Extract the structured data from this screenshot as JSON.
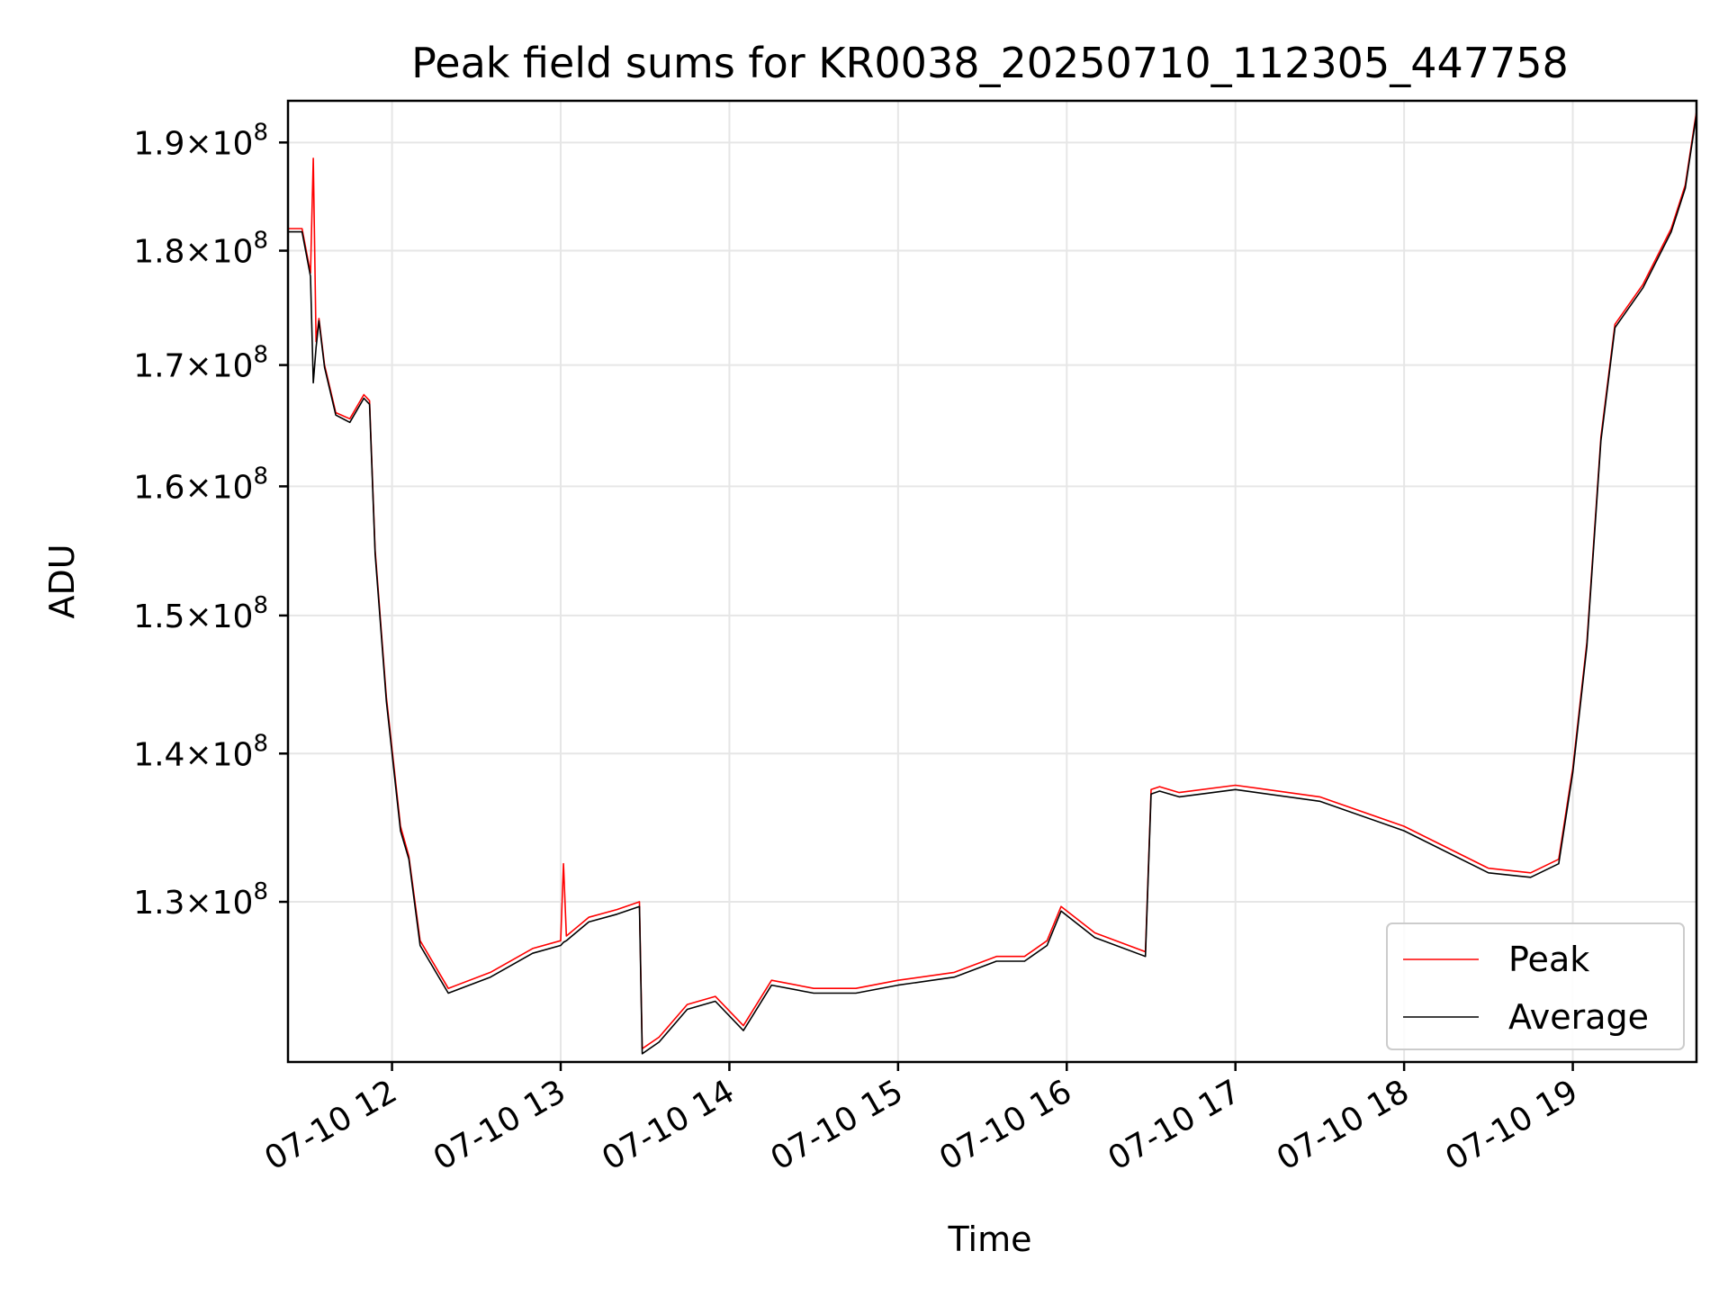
{
  "chart_data": {
    "type": "line",
    "title": "Peak field sums for KR0038_20250710_112305_447758",
    "xlabel": "Time",
    "ylabel": "ADU",
    "y_scale": "log",
    "xlim": [
      "2025-07-10 11:23",
      "2025-07-10 19:44"
    ],
    "ylim": [
      120000000,
      194000000
    ],
    "grid": true,
    "legend_position": "lower right",
    "x_ticks": [
      {
        "value": "2025-07-10 12:00",
        "label": "07-10 12"
      },
      {
        "value": "2025-07-10 13:00",
        "label": "07-10 13"
      },
      {
        "value": "2025-07-10 14:00",
        "label": "07-10 14"
      },
      {
        "value": "2025-07-10 15:00",
        "label": "07-10 15"
      },
      {
        "value": "2025-07-10 16:00",
        "label": "07-10 16"
      },
      {
        "value": "2025-07-10 17:00",
        "label": "07-10 17"
      },
      {
        "value": "2025-07-10 18:00",
        "label": "07-10 18"
      },
      {
        "value": "2025-07-10 19:00",
        "label": "07-10 19"
      }
    ],
    "y_ticks": [
      {
        "value": 130000000,
        "mantissa": "1.3",
        "exponent": "8"
      },
      {
        "value": 140000000,
        "mantissa": "1.4",
        "exponent": "8"
      },
      {
        "value": 150000000,
        "mantissa": "1.5",
        "exponent": "8"
      },
      {
        "value": 160000000,
        "mantissa": "1.6",
        "exponent": "8"
      },
      {
        "value": 170000000,
        "mantissa": "1.7",
        "exponent": "8"
      },
      {
        "value": 180000000,
        "mantissa": "1.8",
        "exponent": "8"
      },
      {
        "value": 190000000,
        "mantissa": "1.9",
        "exponent": "8"
      }
    ],
    "series": [
      {
        "name": "Peak",
        "color": "#ff0000",
        "x": [
          "2025-07-10 11:23",
          "2025-07-10 11:28",
          "2025-07-10 11:31",
          "2025-07-10 11:32",
          "2025-07-10 11:33",
          "2025-07-10 11:34",
          "2025-07-10 11:36",
          "2025-07-10 11:40",
          "2025-07-10 11:45",
          "2025-07-10 11:50",
          "2025-07-10 11:52",
          "2025-07-10 11:54",
          "2025-07-10 11:58",
          "2025-07-10 12:03",
          "2025-07-10 12:06",
          "2025-07-10 12:10",
          "2025-07-10 12:20",
          "2025-07-10 12:35",
          "2025-07-10 12:50",
          "2025-07-10 13:00",
          "2025-07-10 13:01",
          "2025-07-10 13:02",
          "2025-07-10 13:10",
          "2025-07-10 13:20",
          "2025-07-10 13:28",
          "2025-07-10 13:29",
          "2025-07-10 13:35",
          "2025-07-10 13:45",
          "2025-07-10 13:55",
          "2025-07-10 14:05",
          "2025-07-10 14:15",
          "2025-07-10 14:30",
          "2025-07-10 14:45",
          "2025-07-10 15:00",
          "2025-07-10 15:20",
          "2025-07-10 15:35",
          "2025-07-10 15:45",
          "2025-07-10 15:53",
          "2025-07-10 15:58",
          "2025-07-10 16:10",
          "2025-07-10 16:28",
          "2025-07-10 16:30",
          "2025-07-10 16:33",
          "2025-07-10 16:40",
          "2025-07-10 17:00",
          "2025-07-10 17:30",
          "2025-07-10 18:00",
          "2025-07-10 18:30",
          "2025-07-10 18:45",
          "2025-07-10 18:55",
          "2025-07-10 19:00",
          "2025-07-10 19:05",
          "2025-07-10 19:10",
          "2025-07-10 19:15",
          "2025-07-10 19:25",
          "2025-07-10 19:35",
          "2025-07-10 19:40",
          "2025-07-10 19:44"
        ],
        "values": [
          182000000,
          182000000,
          178000000,
          188500000,
          172000000,
          174000000,
          170000000,
          166000000,
          165500000,
          167500000,
          167000000,
          155000000,
          144000000,
          135000000,
          133000000,
          127500000,
          124500000,
          125500000,
          127000000,
          127500000,
          132500000,
          127800000,
          129000000,
          129500000,
          130000000,
          120800000,
          121500000,
          123500000,
          124000000,
          122200000,
          125000000,
          124500000,
          124500000,
          125000000,
          125500000,
          126500000,
          126500000,
          127500000,
          129700000,
          128000000,
          126800000,
          137500000,
          137700000,
          137300000,
          137800000,
          137000000,
          135000000,
          132200000,
          131900000,
          132800000,
          139000000,
          148000000,
          164000000,
          173500000,
          177000000,
          182000000,
          186000000,
          193000000
        ]
      },
      {
        "name": "Average",
        "color": "#000000",
        "x": [
          "2025-07-10 11:23",
          "2025-07-10 11:28",
          "2025-07-10 11:31",
          "2025-07-10 11:32",
          "2025-07-10 11:33",
          "2025-07-10 11:34",
          "2025-07-10 11:36",
          "2025-07-10 11:40",
          "2025-07-10 11:45",
          "2025-07-10 11:50",
          "2025-07-10 11:52",
          "2025-07-10 11:54",
          "2025-07-10 11:58",
          "2025-07-10 12:03",
          "2025-07-10 12:06",
          "2025-07-10 12:10",
          "2025-07-10 12:20",
          "2025-07-10 12:35",
          "2025-07-10 12:50",
          "2025-07-10 13:00",
          "2025-07-10 13:01",
          "2025-07-10 13:02",
          "2025-07-10 13:10",
          "2025-07-10 13:20",
          "2025-07-10 13:28",
          "2025-07-10 13:29",
          "2025-07-10 13:35",
          "2025-07-10 13:45",
          "2025-07-10 13:55",
          "2025-07-10 14:05",
          "2025-07-10 14:15",
          "2025-07-10 14:30",
          "2025-07-10 14:45",
          "2025-07-10 15:00",
          "2025-07-10 15:20",
          "2025-07-10 15:35",
          "2025-07-10 15:45",
          "2025-07-10 15:53",
          "2025-07-10 15:58",
          "2025-07-10 16:10",
          "2025-07-10 16:28",
          "2025-07-10 16:30",
          "2025-07-10 16:33",
          "2025-07-10 16:40",
          "2025-07-10 17:00",
          "2025-07-10 17:30",
          "2025-07-10 18:00",
          "2025-07-10 18:30",
          "2025-07-10 18:45",
          "2025-07-10 18:55",
          "2025-07-10 19:00",
          "2025-07-10 19:05",
          "2025-07-10 19:10",
          "2025-07-10 19:15",
          "2025-07-10 19:25",
          "2025-07-10 19:35",
          "2025-07-10 19:40",
          "2025-07-10 19:44"
        ],
        "values": [
          181700000,
          181700000,
          177700000,
          168500000,
          171500000,
          173800000,
          169800000,
          165800000,
          165200000,
          167200000,
          166700000,
          154700000,
          143700000,
          134700000,
          132800000,
          127200000,
          124200000,
          125200000,
          126700000,
          127200000,
          127400000,
          127500000,
          128700000,
          129200000,
          129700000,
          120500000,
          121200000,
          123200000,
          123700000,
          121900000,
          124700000,
          124200000,
          124200000,
          124700000,
          125200000,
          126200000,
          126200000,
          127200000,
          129400000,
          127700000,
          126500000,
          137200000,
          137400000,
          137000000,
          137500000,
          136700000,
          134700000,
          131900000,
          131600000,
          132500000,
          138700000,
          147700000,
          163700000,
          173200000,
          176700000,
          181700000,
          185700000,
          192700000
        ]
      }
    ]
  }
}
